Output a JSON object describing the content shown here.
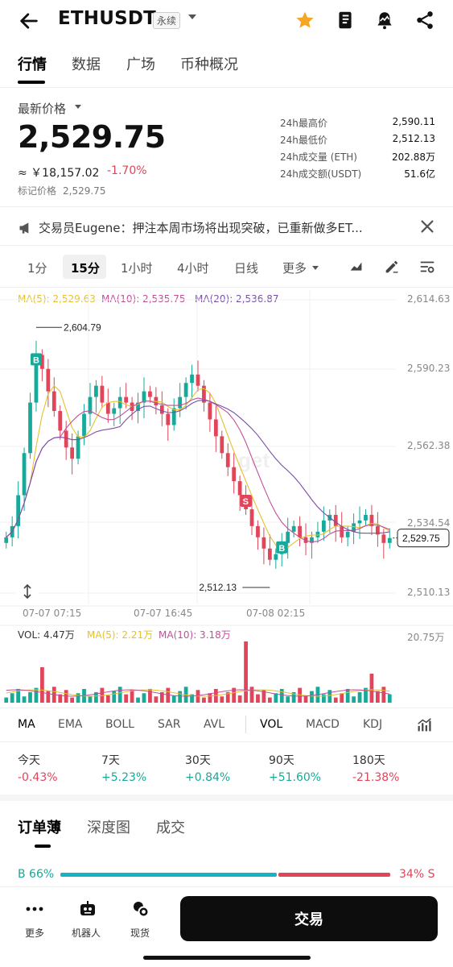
{
  "header": {
    "title": "ETHUSDT",
    "contract_badge": "永续",
    "icons": [
      "back-arrow-icon",
      "star-icon",
      "book-icon",
      "alert-bell-icon",
      "share-icon"
    ]
  },
  "tabs": [
    {
      "label": "行情",
      "active": true
    },
    {
      "label": "数据",
      "active": false
    },
    {
      "label": "广场",
      "active": false
    },
    {
      "label": "币种概况",
      "active": false
    }
  ],
  "price": {
    "label": "最新价格",
    "last": "2,529.75",
    "cny": "≈ ￥18,157.02",
    "change": "-1.70%",
    "mark_label": "标记价格",
    "mark_value": "2,529.75"
  },
  "stats": [
    {
      "label": "24h最高价",
      "value": "2,590.11"
    },
    {
      "label": "24h最低价",
      "value": "2,512.13"
    },
    {
      "label": "24h成交量 (ETH)",
      "value": "202.88万"
    },
    {
      "label": "24h成交额(USDT)",
      "value": "51.6亿"
    }
  ],
  "notice": {
    "text": "交易员Eugene：押注本周市场将出现突破，已重新做多ET..."
  },
  "intervals": [
    {
      "label": "1分",
      "active": false
    },
    {
      "label": "15分",
      "active": true
    },
    {
      "label": "1小时",
      "active": false
    },
    {
      "label": "4小时",
      "active": false
    },
    {
      "label": "日线",
      "active": false
    },
    {
      "label": "更多",
      "active": false
    }
  ],
  "chart": {
    "ma_legend": [
      {
        "label": "MA(5): 2,529.63",
        "color": "#e5c12e"
      },
      {
        "label": "MA(10): 2,535.75",
        "color": "#c0509a"
      },
      {
        "label": "MA(20): 2,536.87",
        "color": "#7a4ea8"
      }
    ],
    "y_axis": [
      "2,614.63",
      "2,590.23",
      "2,562.38",
      "2,534.54",
      "2,510.13"
    ],
    "x_axis": [
      "07-07 07:15",
      "07-07 16:45",
      "07-08 02:15"
    ],
    "high_label": "2,604.79",
    "low_label": "2,512.13",
    "current_price_tag": "2,529.75",
    "markers": [
      {
        "label": "B",
        "color": "#17a99a"
      },
      {
        "label": "S",
        "color": "#e0455a"
      },
      {
        "label": "B",
        "color": "#17a99a"
      }
    ],
    "up_color": "#17a99a",
    "down_color": "#e0455a",
    "watermark": "get",
    "vol_legend": [
      {
        "label": "VOL: 4.47万",
        "color": "#333333"
      },
      {
        "label": "MA(5): 2.21万",
        "color": "#e5c12e"
      },
      {
        "label": "MA(10): 3.18万",
        "color": "#c0509a"
      }
    ],
    "vol_axis_max": "20.75万"
  },
  "chart_data": {
    "type": "candlestick",
    "interval": "15分",
    "x_labels": [
      "07-07 07:15",
      "07-07 16:45",
      "07-08 02:15"
    ],
    "ylim": [
      2510.13,
      2614.63
    ],
    "y_ticks": [
      2614.63,
      2590.23,
      2562.38,
      2534.54,
      2510.13
    ],
    "high": 2604.79,
    "low": 2512.13,
    "last": 2529.75,
    "closes": [
      2530,
      2534,
      2545,
      2560,
      2578,
      2595,
      2590,
      2582,
      2575,
      2568,
      2562,
      2558,
      2566,
      2574,
      2580,
      2584,
      2578,
      2574,
      2576,
      2580,
      2578,
      2575,
      2578,
      2582,
      2580,
      2577,
      2574,
      2570,
      2576,
      2580,
      2585,
      2588,
      2584,
      2578,
      2572,
      2566,
      2560,
      2555,
      2550,
      2545,
      2540,
      2534,
      2530,
      2526,
      2522,
      2524,
      2528,
      2532,
      2534,
      2530,
      2528,
      2530,
      2532,
      2536,
      2538,
      2534,
      2530,
      2532,
      2535,
      2536,
      2538,
      2534,
      2531,
      2528,
      2529.75
    ],
    "vol_max": 20.75
  },
  "indicators": [
    "MA",
    "EMA",
    "BOLL",
    "SAR",
    "AVL",
    "VOL",
    "MACD",
    "KDJ"
  ],
  "performance": [
    {
      "label": "今天",
      "value": "-0.43%",
      "dir": "down"
    },
    {
      "label": "7天",
      "value": "+5.23%",
      "dir": "up"
    },
    {
      "label": "30天",
      "value": "+0.84%",
      "dir": "up"
    },
    {
      "label": "90天",
      "value": "+51.60%",
      "dir": "up"
    },
    {
      "label": "180天",
      "value": "-21.38%",
      "dir": "down"
    }
  ],
  "orderbook": {
    "tabs": [
      {
        "label": "订单薄",
        "active": true
      },
      {
        "label": "深度图",
        "active": false
      },
      {
        "label": "成交",
        "active": false
      }
    ],
    "buy_ratio_label": "B 66%",
    "sell_ratio_label": "34% S",
    "buy_ratio": 0.66
  },
  "bottom": {
    "items": [
      {
        "label": "更多",
        "icon": "more-dots-icon"
      },
      {
        "label": "机器人",
        "icon": "robot-icon"
      },
      {
        "label": "现货",
        "icon": "spot-coins-icon"
      }
    ],
    "trade_label": "交易"
  }
}
